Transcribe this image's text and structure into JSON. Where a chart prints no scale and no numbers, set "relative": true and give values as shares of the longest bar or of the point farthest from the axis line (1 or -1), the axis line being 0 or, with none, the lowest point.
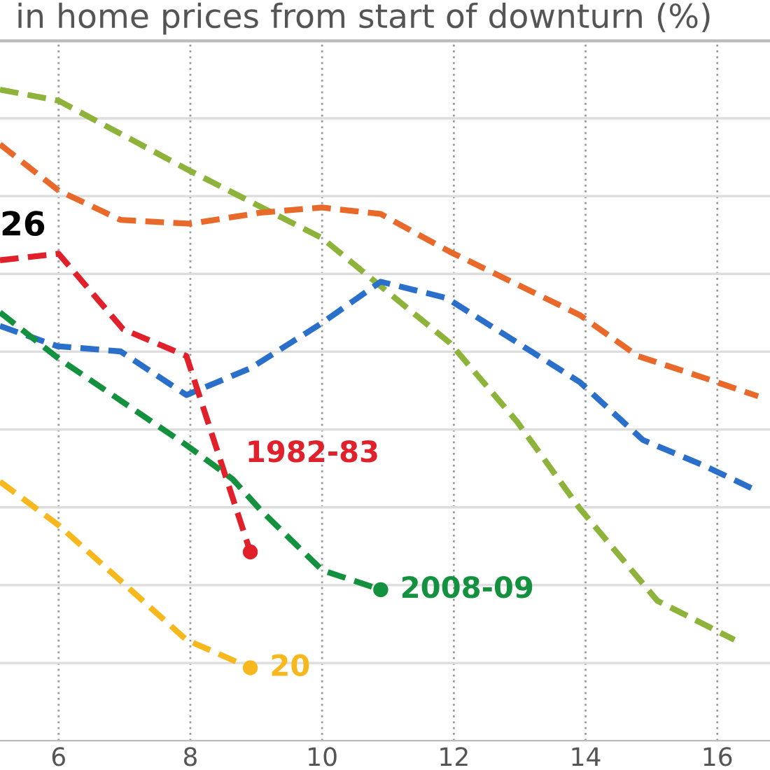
{
  "chart_data": {
    "type": "line",
    "title": "in home prices from start of downturn (%)",
    "relative": true,
    "line_style": "dashed",
    "marker": "none",
    "grid": true,
    "legend": false,
    "xlim": [
      5.11,
      16.8
    ],
    "xticks": [
      6,
      8,
      10,
      12,
      14,
      16
    ],
    "series": [
      {
        "color": "#8db33a",
        "x": [
          5.11,
          6,
          8,
          10,
          10.83,
          11.94,
          12.96,
          13.91,
          15.09,
          16.26
        ],
        "values": [
          1.0,
          0.983,
          0.875,
          0.772,
          0.703,
          0.611,
          0.49,
          0.357,
          0.215,
          0.155
        ]
      },
      {
        "color": "#e8692a",
        "x": [
          5.11,
          6,
          6.94,
          8,
          9.06,
          10,
          10.89,
          11.94,
          13.91,
          14.79,
          15.81,
          16.62
        ],
        "values": [
          0.916,
          0.845,
          0.8,
          0.794,
          0.811,
          0.819,
          0.809,
          0.751,
          0.654,
          0.591,
          0.557,
          0.529
        ]
      },
      {
        "color": "#2a6fc9",
        "x": [
          5.11,
          5.98,
          6.94,
          7.94,
          8.91,
          9.96,
          10.89,
          11.89,
          13.91,
          14.87,
          15.81,
          16.62
        ],
        "values": [
          0.637,
          0.606,
          0.598,
          0.531,
          0.572,
          0.639,
          0.705,
          0.68,
          0.551,
          0.462,
          0.422,
          0.383
        ]
      },
      {
        "name": "1982-83",
        "color": "#e0202a",
        "x": [
          5.11,
          6,
          6.98,
          7.94,
          8.91
        ],
        "values": [
          0.738,
          0.748,
          0.632,
          0.591,
          0.29
        ]
      },
      {
        "name": "2008-09",
        "color": "#13913f",
        "x": [
          5.11,
          6,
          7.94,
          8.64,
          9.06,
          10,
          10.89
        ],
        "values": [
          0.658,
          0.587,
          0.454,
          0.402,
          0.355,
          0.262,
          0.232
        ]
      },
      {
        "name": "20",
        "color": "#f6b81d",
        "x": [
          5.11,
          6,
          7.94,
          8.91
        ],
        "values": [
          0.398,
          0.331,
          0.155,
          0.112
        ]
      },
      {
        "type": "scatter",
        "marker": "circle",
        "color": "#e0202a",
        "x": [
          8.91
        ],
        "values": [
          0.29
        ]
      },
      {
        "type": "scatter",
        "marker": "circle",
        "color": "#13913f",
        "x": [
          10.89
        ],
        "values": [
          0.232
        ]
      },
      {
        "type": "scatter",
        "marker": "circle",
        "color": "#f6b81d",
        "x": [
          8.91
        ],
        "values": [
          0.112
        ]
      }
    ],
    "annotations": [
      "26"
    ]
  }
}
